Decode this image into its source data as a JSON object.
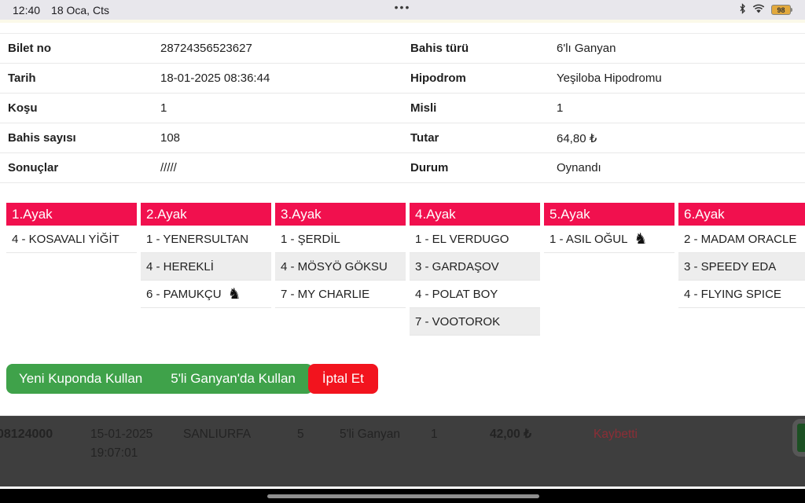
{
  "colors": {
    "accent_pink": "#f1104e",
    "green": "#3fa24a",
    "red": "#f2141e",
    "lost_red": "#8b2e36"
  },
  "status_bar": {
    "time": "12:40",
    "date": "18 Oca, Cts",
    "menu_dots": "•••",
    "battery_percent": "98"
  },
  "icons": {
    "horse": "♞"
  },
  "ticket": {
    "left": [
      {
        "label": "Bilet no",
        "value": "28724356523627"
      },
      {
        "label": "Tarih",
        "value": "18-01-2025 08:36:44"
      },
      {
        "label": "Koşu",
        "value": "1"
      },
      {
        "label": "Bahis sayısı",
        "value": "108"
      },
      {
        "label": "Sonuçlar",
        "value": "/////"
      }
    ],
    "right": [
      {
        "label": "Bahis türü",
        "value": "6'lı Ganyan"
      },
      {
        "label": "Hipodrom",
        "value": "Yeşiloba Hipodromu"
      },
      {
        "label": "Misli",
        "value": "1"
      },
      {
        "label": "Tutar",
        "value": "64,80 ₺"
      },
      {
        "label": "Durum",
        "value": "Oynandı"
      }
    ]
  },
  "legs": [
    {
      "title": "1.Ayak",
      "horses": [
        {
          "text": "4 - KOSAVALI YİĞİT",
          "icon": false
        }
      ]
    },
    {
      "title": "2.Ayak",
      "horses": [
        {
          "text": "1 - YENERSULTAN",
          "icon": false
        },
        {
          "text": "4 - HEREKLİ",
          "icon": false
        },
        {
          "text": "6 - PAMUKÇU",
          "icon": true
        }
      ]
    },
    {
      "title": "3.Ayak",
      "horses": [
        {
          "text": "1 - ŞERDİL",
          "icon": false
        },
        {
          "text": "4 - MÖSYÖ GÖKSU",
          "icon": false
        },
        {
          "text": "7 - MY CHARLIE",
          "icon": false
        }
      ]
    },
    {
      "title": "4.Ayak",
      "horses": [
        {
          "text": "1 - EL VERDUGO",
          "icon": false
        },
        {
          "text": "3 - GARDAŞOV",
          "icon": false
        },
        {
          "text": "4 - POLAT BOY",
          "icon": false
        },
        {
          "text": "7 - VOOTOROK",
          "icon": false
        }
      ]
    },
    {
      "title": "5.Ayak",
      "horses": [
        {
          "text": "1 - ASIL OĞUL",
          "icon": true
        }
      ]
    },
    {
      "title": "6.Ayak",
      "horses": [
        {
          "text": "2 - MADAM ORACLE",
          "icon": false
        },
        {
          "text": "3 - SPEEDY EDA",
          "icon": false
        },
        {
          "text": "4 - FLYING SPICE",
          "icon": false
        }
      ]
    }
  ],
  "actions": {
    "use_new_coupon": "Yeni Kuponda Kullan",
    "use_in_ganyan5": "5'li Ganyan'da Kullan",
    "cancel": "İptal Et"
  },
  "history_row": {
    "ticket_id": "08124000",
    "datetime": "15-01-2025 19:07:01",
    "hipodrom": "SANLIURFA",
    "kosu": "5",
    "bahis_turu": "5'li Ganyan",
    "misli": "1",
    "tutar": "42,00 ₺",
    "durum": "Kaybetti"
  }
}
